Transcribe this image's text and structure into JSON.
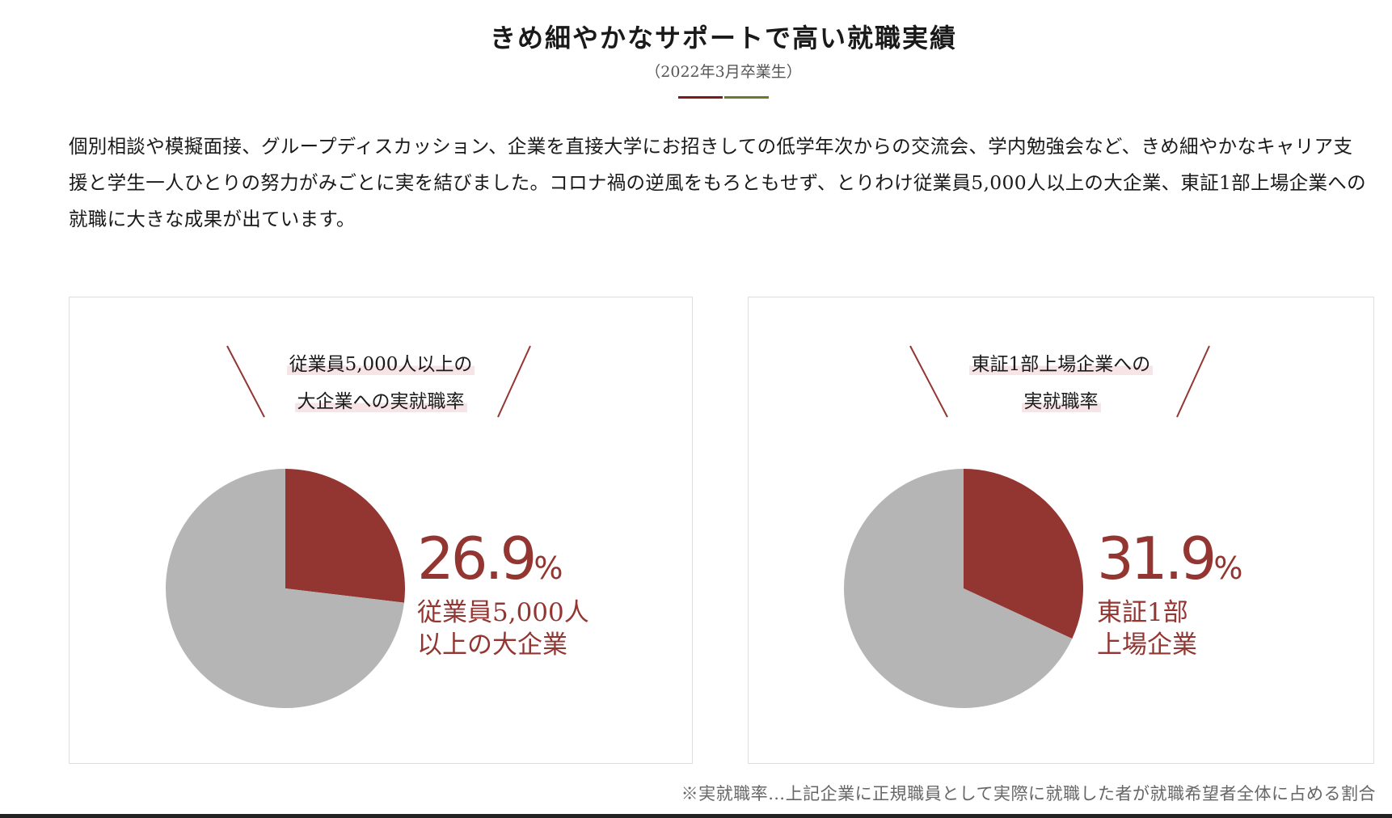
{
  "title": "きめ細やかなサポートで高い就職実績",
  "subtitle": "（2022年3月卒業生）",
  "colors": {
    "accent": "#933632",
    "rest": "#b5b5b5",
    "rule_left": "#7a1c1c",
    "rule_right": "#6b7a2a",
    "heading_highlight": "#f7e4e7"
  },
  "intro": "個別相談や模擬面接、グループディスカッション、企業を直接大学にお招きしての低学年次からの交流会、学内勉強会など、きめ細やかなキャリア支援と学生一人ひとりの努力がみごとに実を結びました。コロナ禍の逆風をもろともせず、とりわけ従業員5,000人以上の大企業、東証1部上場企業への就職に大きな成果が出ています。",
  "panels": [
    {
      "heading_line1": "従業員5,000人以上の",
      "heading_line2": "大企業への実就職率",
      "percent_text": "26.9",
      "percent_sign": "%",
      "label_line1": "従業員5,000人",
      "label_line2": "以上の大企業"
    },
    {
      "heading_line1": "東証1部上場企業への",
      "heading_line2": "実就職率",
      "percent_text": "31.9",
      "percent_sign": "%",
      "label_line1": "東証1部",
      "label_line2": "上場企業"
    }
  ],
  "chart_data": [
    {
      "type": "pie",
      "title": "従業員5,000人以上の大企業への実就職率",
      "categories": [
        "従業員5,000人以上の大企業",
        ""
      ],
      "values": [
        26.9,
        73.1
      ],
      "unit": "%"
    },
    {
      "type": "pie",
      "title": "東証1部上場企業への実就職率",
      "categories": [
        "東証1部上場企業",
        ""
      ],
      "values": [
        31.9,
        68.1
      ],
      "unit": "%"
    }
  ],
  "footnote": "※実就職率…上記企業に正規職員として実際に就職した者が就職希望者全体に占める割合"
}
